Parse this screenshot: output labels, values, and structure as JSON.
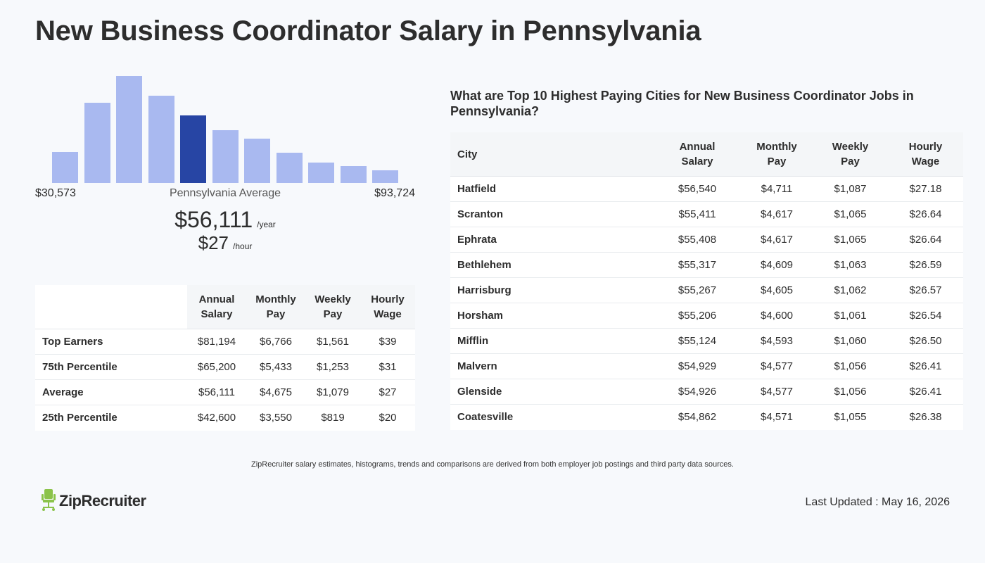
{
  "page_title": "New Business Coordinator Salary in Pennsylvania",
  "chart_data": {
    "type": "bar",
    "values": [
      44,
      114,
      152,
      124,
      96,
      75,
      63,
      43,
      29,
      24,
      18
    ],
    "highlight_index": 4,
    "colors": {
      "bar": "#a9b9f0",
      "highlight": "#2745a4"
    }
  },
  "range": {
    "min": "$30,573",
    "max": "$93,724",
    "label": "Pennsylvania Average"
  },
  "average": {
    "year": "$56,111",
    "year_unit": "/year",
    "hour": "$27",
    "hour_unit": "/hour"
  },
  "percentile_table": {
    "headers": [
      "Annual Salary",
      "Monthly Pay",
      "Weekly Pay",
      "Hourly Wage"
    ],
    "rows": [
      {
        "label": "Top Earners",
        "annual": "$81,194",
        "monthly": "$6,766",
        "weekly": "$1,561",
        "hourly": "$39"
      },
      {
        "label": "75th Percentile",
        "annual": "$65,200",
        "monthly": "$5,433",
        "weekly": "$1,253",
        "hourly": "$31"
      },
      {
        "label": "Average",
        "annual": "$56,111",
        "monthly": "$4,675",
        "weekly": "$1,079",
        "hourly": "$27"
      },
      {
        "label": "25th Percentile",
        "annual": "$42,600",
        "monthly": "$3,550",
        "weekly": "$819",
        "hourly": "$20"
      }
    ]
  },
  "cities": {
    "heading": "What are Top 10 Highest Paying Cities for New Business Coordinator Jobs in Pennsylvania?",
    "headers": [
      "City",
      "Annual Salary",
      "Monthly Pay",
      "Weekly Pay",
      "Hourly Wage"
    ],
    "rows": [
      {
        "city": "Hatfield",
        "annual": "$56,540",
        "monthly": "$4,711",
        "weekly": "$1,087",
        "hourly": "$27.18"
      },
      {
        "city": "Scranton",
        "annual": "$55,411",
        "monthly": "$4,617",
        "weekly": "$1,065",
        "hourly": "$26.64"
      },
      {
        "city": "Ephrata",
        "annual": "$55,408",
        "monthly": "$4,617",
        "weekly": "$1,065",
        "hourly": "$26.64"
      },
      {
        "city": "Bethlehem",
        "annual": "$55,317",
        "monthly": "$4,609",
        "weekly": "$1,063",
        "hourly": "$26.59"
      },
      {
        "city": "Harrisburg",
        "annual": "$55,267",
        "monthly": "$4,605",
        "weekly": "$1,062",
        "hourly": "$26.57"
      },
      {
        "city": "Horsham",
        "annual": "$55,206",
        "monthly": "$4,600",
        "weekly": "$1,061",
        "hourly": "$26.54"
      },
      {
        "city": "Mifflin",
        "annual": "$55,124",
        "monthly": "$4,593",
        "weekly": "$1,060",
        "hourly": "$26.50"
      },
      {
        "city": "Malvern",
        "annual": "$54,929",
        "monthly": "$4,577",
        "weekly": "$1,056",
        "hourly": "$26.41"
      },
      {
        "city": "Glenside",
        "annual": "$54,926",
        "monthly": "$4,577",
        "weekly": "$1,056",
        "hourly": "$26.41"
      },
      {
        "city": "Coatesville",
        "annual": "$54,862",
        "monthly": "$4,571",
        "weekly": "$1,055",
        "hourly": "$26.38"
      }
    ]
  },
  "footnote": "ZipRecruiter salary estimates, histograms, trends and comparisons are derived from both employer job postings and third party data sources.",
  "logo": {
    "text": "ZipRecruiter",
    "icon": "chair-icon",
    "color": "#8bc34a"
  },
  "last_updated": "Last Updated : May 16, 2026"
}
